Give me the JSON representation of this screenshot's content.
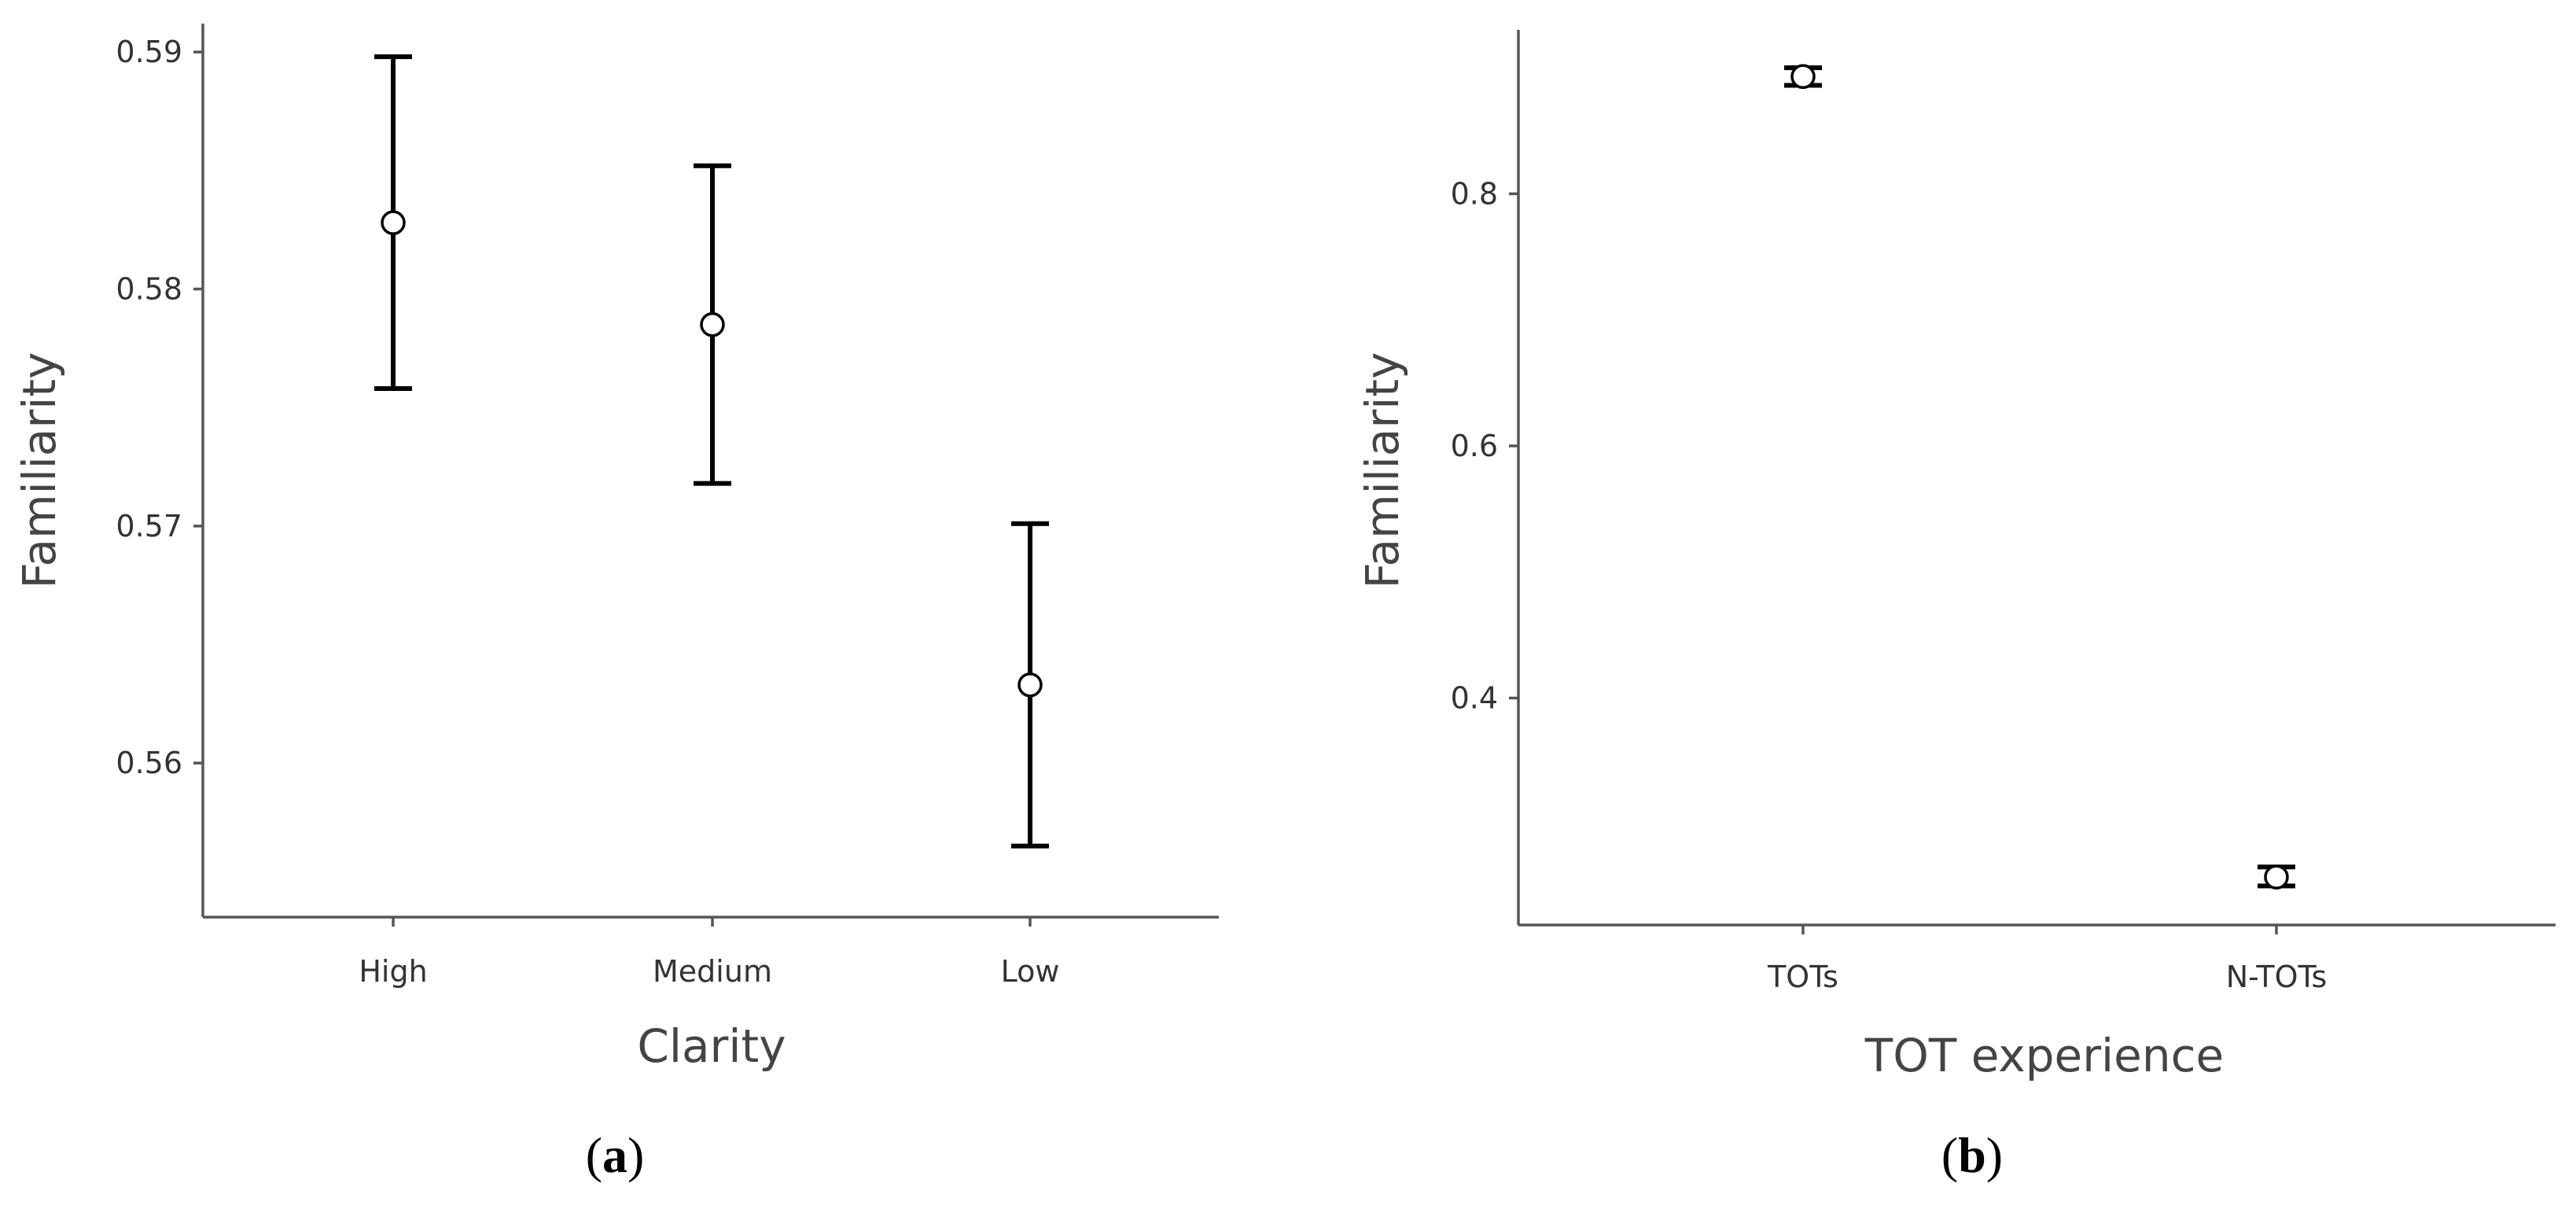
{
  "chart_data": [
    {
      "type": "scatter",
      "panel_label": "a",
      "xlabel": "Clarity",
      "ylabel": "Familiarity",
      "categories": [
        "High",
        "Medium",
        "Low"
      ],
      "values": [
        0.5828,
        0.5785,
        0.5633
      ],
      "error_low": [
        0.5758,
        0.5718,
        0.5565
      ],
      "error_high": [
        0.5898,
        0.5852,
        0.5701
      ],
      "ylim": [
        0.5535,
        0.5912
      ],
      "yticks": [
        0.56,
        0.57,
        0.58,
        0.59
      ],
      "ytick_labels": [
        "0.56",
        "0.57",
        "0.58",
        "0.59"
      ],
      "grid": false
    },
    {
      "type": "scatter",
      "panel_label": "b",
      "xlabel": "TOT experience",
      "ylabel": "Familiarity",
      "categories": [
        "TOTs",
        "N-TOTs"
      ],
      "values": [
        0.893,
        0.258
      ],
      "error_low": [
        0.886,
        0.251
      ],
      "error_high": [
        0.9,
        0.266
      ],
      "ylim": [
        0.22,
        0.93
      ],
      "yticks": [
        0.4,
        0.6,
        0.8
      ],
      "ytick_labels": [
        "0.4",
        "0.6",
        "0.8"
      ],
      "grid": false
    }
  ]
}
